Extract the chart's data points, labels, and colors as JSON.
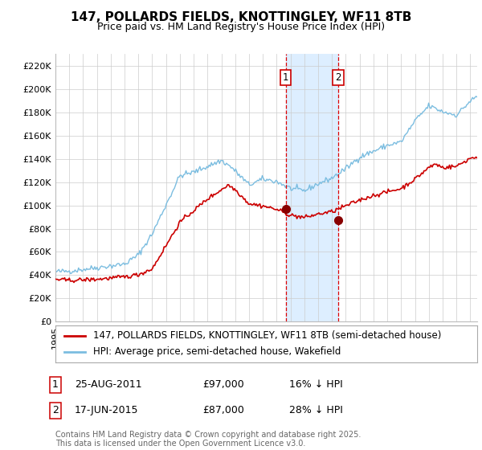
{
  "title": "147, POLLARDS FIELDS, KNOTTINGLEY, WF11 8TB",
  "subtitle": "Price paid vs. HM Land Registry's House Price Index (HPI)",
  "ylabel_ticks": [
    "£0",
    "£20K",
    "£40K",
    "£60K",
    "£80K",
    "£100K",
    "£120K",
    "£140K",
    "£160K",
    "£180K",
    "£200K",
    "£220K"
  ],
  "ylabel_values": [
    0,
    20000,
    40000,
    60000,
    80000,
    100000,
    120000,
    140000,
    160000,
    180000,
    200000,
    220000
  ],
  "ylim": [
    0,
    230000
  ],
  "xlim_start": 1995.0,
  "xlim_end": 2025.5,
  "hpi_color": "#7bbde0",
  "price_color": "#cc0000",
  "marker_color": "#880000",
  "vline_color": "#dd0000",
  "shade_color": "#ddeeff",
  "transaction1_date": 2011.646,
  "transaction1_price": 97000,
  "transaction2_date": 2015.458,
  "transaction2_price": 87000,
  "legend_property": "147, POLLARDS FIELDS, KNOTTINGLEY, WF11 8TB (semi-detached house)",
  "legend_hpi": "HPI: Average price, semi-detached house, Wakefield",
  "note1_label": "1",
  "note1_date": "25-AUG-2011",
  "note1_price": "£97,000",
  "note1_hpi": "16% ↓ HPI",
  "note2_label": "2",
  "note2_date": "17-JUN-2015",
  "note2_price": "£87,000",
  "note2_hpi": "28% ↓ HPI",
  "footer": "Contains HM Land Registry data © Crown copyright and database right 2025.\nThis data is licensed under the Open Government Licence v3.0.",
  "background_color": "#ffffff",
  "grid_color": "#cccccc",
  "title_fontsize": 11,
  "subtitle_fontsize": 9,
  "tick_fontsize": 8,
  "legend_fontsize": 8.5,
  "footer_fontsize": 7
}
